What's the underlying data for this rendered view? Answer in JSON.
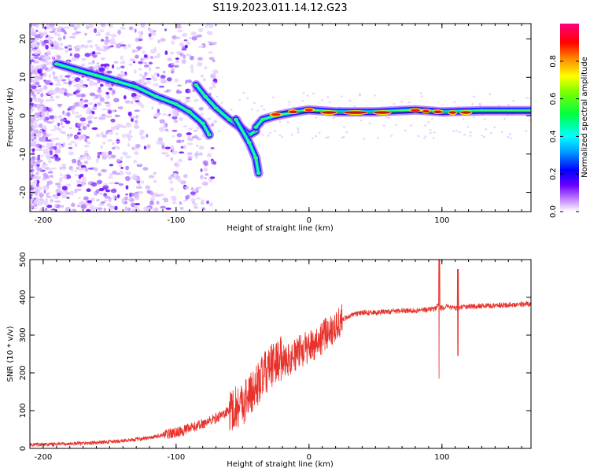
{
  "title": "S119.2023.011.14.12.G23",
  "colors": {
    "snr_line": "#e8322b",
    "axes": "#000000",
    "background": "#ffffff"
  },
  "chart_data": [
    {
      "type": "heatmap",
      "xlabel": "Height of straight line (km)",
      "ylabel": "Frequency (Hz)",
      "xlim": [
        -210,
        167
      ],
      "ylim": [
        -25,
        24
      ],
      "xticks": [
        "-200",
        "-100",
        "0",
        "100"
      ],
      "xtick_values": [
        -200,
        -100,
        0,
        100
      ],
      "yticks": [
        "20",
        "10",
        "0",
        "-10",
        "-20"
      ],
      "ytick_values": [
        20,
        10,
        0,
        -10,
        -20
      ],
      "colorbar": {
        "label": "Normalized spectral amplitude",
        "range": [
          0,
          1
        ],
        "ticks": [
          "0.0",
          "0.2",
          "0.4",
          "0.6",
          "0.8"
        ],
        "tick_values": [
          0.0,
          0.2,
          0.4,
          0.6,
          0.8
        ],
        "colormap": "rainbow (white-violet-blue-cyan-green-yellow-red-magenta)"
      },
      "ridges": [
        {
          "points": [
            [
              -190,
              13.5
            ],
            [
              -175,
              12
            ],
            [
              -160,
              10.5
            ],
            [
              -145,
              9
            ],
            [
              -130,
              7.5
            ],
            [
              -115,
              5
            ],
            [
              -100,
              3
            ],
            [
              -90,
              1
            ],
            [
              -80,
              -2
            ],
            [
              -75,
              -5
            ]
          ]
        },
        {
          "points": [
            [
              -85,
              8
            ],
            [
              -78,
              5
            ],
            [
              -70,
              2
            ],
            [
              -60,
              -1
            ],
            [
              -50,
              -3.5
            ],
            [
              -45,
              -5
            ],
            [
              -40,
              -4
            ]
          ]
        },
        {
          "points": [
            [
              -40,
              -3
            ],
            [
              -35,
              -1
            ],
            [
              -25,
              0
            ],
            [
              -10,
              1
            ],
            [
              0,
              1.5
            ],
            [
              20,
              1
            ],
            [
              50,
              1
            ],
            [
              80,
              1.5
            ],
            [
              100,
              1
            ],
            [
              130,
              1.3
            ],
            [
              167,
              1.3
            ]
          ]
        },
        {
          "points": [
            [
              -55,
              -1
            ],
            [
              -45,
              -7
            ],
            [
              -40,
              -11
            ],
            [
              -38,
              -15
            ]
          ]
        }
      ]
    },
    {
      "type": "line",
      "xlabel": "Height of straight line (km)",
      "ylabel": "SNR (10 * v/v)",
      "xlim": [
        -210,
        167
      ],
      "ylim": [
        0,
        500
      ],
      "xticks": [
        "-200",
        "-100",
        "0",
        "100"
      ],
      "xtick_values": [
        -200,
        -100,
        0,
        100
      ],
      "yticks": [
        "0",
        "100",
        "200",
        "300",
        "400",
        "500"
      ],
      "ytick_values": [
        0,
        100,
        200,
        300,
        400,
        500
      ],
      "series": [
        {
          "x": [
            -210,
            -200,
            -180,
            -160,
            -140,
            -120,
            -100,
            -90,
            -80,
            -70,
            -60,
            -50,
            -45,
            -40,
            -35,
            -30,
            -25,
            -20,
            -15,
            -10,
            -5,
            0,
            5,
            10,
            15,
            20,
            25,
            30,
            40,
            50,
            60,
            70,
            80,
            90,
            95,
            97,
            99,
            105,
            110,
            112,
            115,
            120,
            130,
            140,
            150,
            160,
            167
          ],
          "y": [
            10,
            10,
            12,
            15,
            20,
            28,
            42,
            52,
            65,
            80,
            100,
            120,
            140,
            160,
            190,
            210,
            230,
            240,
            235,
            250,
            260,
            270,
            280,
            295,
            310,
            325,
            340,
            350,
            360,
            360,
            362,
            365,
            365,
            368,
            370,
            380,
            372,
            375,
            370,
            372,
            375,
            375,
            378,
            378,
            380,
            382,
            382
          ]
        }
      ]
    }
  ]
}
